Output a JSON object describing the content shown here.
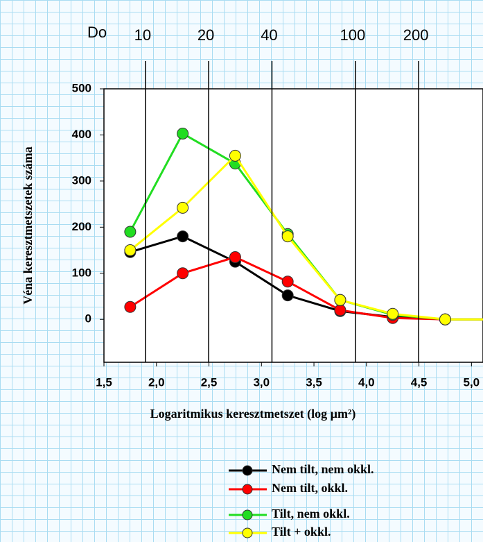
{
  "chart_data": {
    "type": "line",
    "xlabel": "Logaritmikus keresztmetszet (log µm²)",
    "ylabel": "Véna keresztmetszetek száma",
    "top_axis_label": "Do",
    "top_ticks": [
      {
        "value": 1.895,
        "label": "10"
      },
      {
        "value": 2.497,
        "label": "20"
      },
      {
        "value": 3.1,
        "label": "40"
      },
      {
        "value": 3.895,
        "label": "100"
      },
      {
        "value": 4.497,
        "label": "200"
      }
    ],
    "x": [
      1.75,
      2.25,
      2.75,
      3.25,
      3.75,
      4.25,
      4.75,
      5.25
    ],
    "series": [
      {
        "name": "Nem tilt, nem okkl.",
        "color": "#000000",
        "values": [
          146,
          180,
          125,
          52,
          18,
          5,
          0,
          0
        ]
      },
      {
        "name": "Nem tilt, okkl.",
        "color": "#ff0000",
        "values": [
          27,
          100,
          135,
          82,
          20,
          3,
          0,
          0
        ]
      },
      {
        "name": "Tilt, nem okkl.",
        "color": "#22dd22",
        "values": [
          190,
          403,
          338,
          185,
          42,
          10,
          0,
          0
        ]
      },
      {
        "name": "Tilt + okkl.",
        "color": "#ffff00",
        "values": [
          150,
          242,
          355,
          180,
          42,
          12,
          0,
          0
        ]
      }
    ],
    "xlim": [
      1.5,
      5.11
    ],
    "ylim": [
      -93,
      500
    ],
    "xticks": [
      {
        "value": 1.5,
        "label": "1,5"
      },
      {
        "value": 2.0,
        "label": "2,0"
      },
      {
        "value": 2.5,
        "label": "2,5"
      },
      {
        "value": 3.0,
        "label": "3,0"
      },
      {
        "value": 3.5,
        "label": "3,5"
      },
      {
        "value": 4.0,
        "label": "4,0"
      },
      {
        "value": 4.5,
        "label": "4,5"
      },
      {
        "value": 5.0,
        "label": "5,0"
      }
    ],
    "yticks": [
      0,
      100,
      200,
      300,
      400,
      500
    ],
    "grid": false
  }
}
